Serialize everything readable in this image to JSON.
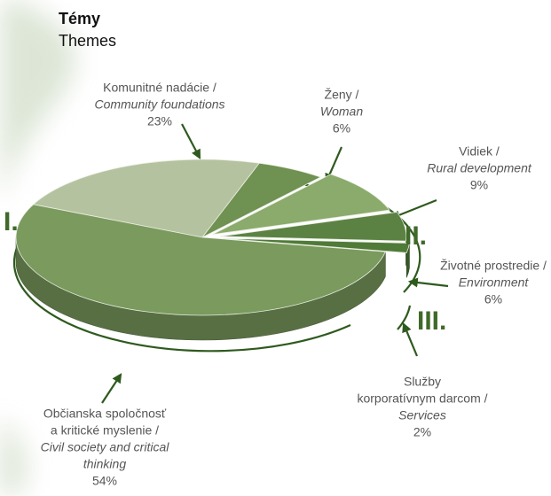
{
  "chart_data": {
    "type": "pie3d",
    "title": "Témy",
    "subtitle": "Themes",
    "categories": [
      [
        "Komunitné nadácie /",
        "Community foundations"
      ],
      [
        "Ženy /",
        "Woman"
      ],
      [
        "Vidiek /",
        "Rural development"
      ],
      [
        "Životné prostredie /",
        "Environment"
      ],
      [
        "Služby",
        "korporatívnym darcom /",
        "Services"
      ],
      [
        "Občianska spoločnosť",
        "a kritické myslenie /",
        "Civil society and critical",
        "thinking"
      ]
    ],
    "values": [
      23,
      6,
      9,
      6,
      2,
      54
    ],
    "value_labels": [
      "23%",
      "6%",
      "9%",
      "6%",
      "2%",
      "54%"
    ],
    "colors": [
      "#b5c2a0",
      "#6f9152",
      "#8aab6b",
      "#5b8243",
      "#4f7a38",
      "#7a9a5e"
    ],
    "groups": [
      "I.",
      "II.",
      "III."
    ]
  }
}
